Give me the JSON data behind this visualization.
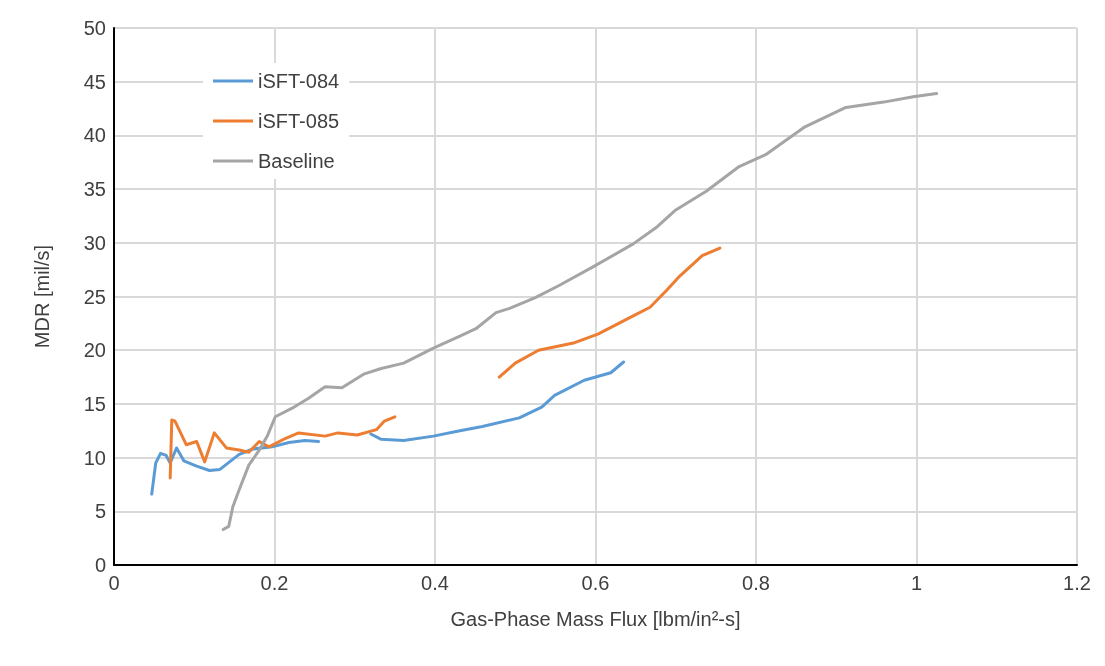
{
  "chart_data": {
    "type": "line",
    "xlabel": "Gas-Phase Mass Flux [lbm/in²-s]",
    "ylabel": "MDR [mil/s]",
    "xlim": [
      0,
      1.2
    ],
    "xticks": [
      0,
      0.2,
      0.4,
      0.6,
      0.8,
      1,
      1.2
    ],
    "ylim": [
      0,
      50
    ],
    "yticks": [
      0,
      5,
      10,
      15,
      20,
      25,
      30,
      35,
      40,
      45,
      50
    ],
    "grid": true,
    "legend": "top left",
    "marker": "none",
    "line_style": "solid",
    "series": [
      {
        "name": "iSFT-084",
        "color": "#5b9bd5",
        "x": [
          0.047,
          0.052,
          0.058,
          0.065,
          0.07,
          0.078,
          0.087,
          0.103,
          0.119,
          0.132,
          0.156,
          0.173,
          0.197,
          0.218,
          0.238,
          0.255,
          0.29,
          0.32,
          0.333,
          0.361,
          0.398,
          0.431,
          0.459,
          0.505,
          0.533,
          0.549,
          0.586,
          0.619,
          0.635
        ],
        "values": [
          6.6,
          9.5,
          10.4,
          10.2,
          9.5,
          10.9,
          9.7,
          9.2,
          8.8,
          8.9,
          10.3,
          10.8,
          11.0,
          11.4,
          11.6,
          11.5,
          null,
          12.2,
          11.7,
          11.6,
          12.0,
          12.5,
          12.9,
          13.7,
          14.7,
          15.8,
          17.2,
          17.9,
          18.9
        ]
      },
      {
        "name": "iSFT-085",
        "color": "#ed7d31",
        "x": [
          0.07,
          0.072,
          0.076,
          0.09,
          0.103,
          0.113,
          0.125,
          0.14,
          0.156,
          0.168,
          0.181,
          0.193,
          0.214,
          0.23,
          0.263,
          0.279,
          0.303,
          0.327,
          0.337,
          0.35,
          0.41,
          0.48,
          0.5,
          0.529,
          0.574,
          0.603,
          0.647,
          0.668,
          0.689,
          0.705,
          0.733,
          0.755
        ],
        "values": [
          8.1,
          13.5,
          13.4,
          11.2,
          11.5,
          9.6,
          12.3,
          10.9,
          10.7,
          10.5,
          11.5,
          11.0,
          11.8,
          12.3,
          12.0,
          12.3,
          12.1,
          12.6,
          13.4,
          13.8,
          null,
          17.5,
          18.8,
          20.0,
          20.7,
          21.5,
          23.2,
          24.0,
          25.6,
          26.9,
          28.8,
          29.5
        ]
      },
      {
        "name": "Baseline",
        "color": "#a5a5a5",
        "x": [
          0.136,
          0.143,
          0.148,
          0.156,
          0.168,
          0.181,
          0.191,
          0.201,
          0.222,
          0.242,
          0.263,
          0.284,
          0.312,
          0.333,
          0.361,
          0.398,
          0.431,
          0.451,
          0.476,
          0.493,
          0.525,
          0.554,
          0.598,
          0.647,
          0.677,
          0.699,
          0.738,
          0.779,
          0.812,
          0.861,
          0.912,
          0.959,
          0.996,
          1.025
        ],
        "values": [
          3.3,
          3.6,
          5.4,
          7.0,
          9.3,
          10.7,
          12.0,
          13.8,
          14.6,
          15.5,
          16.6,
          16.5,
          17.8,
          18.3,
          18.8,
          20.2,
          21.3,
          22.0,
          23.5,
          23.9,
          24.9,
          26.0,
          27.8,
          29.9,
          31.5,
          33.0,
          34.8,
          37.1,
          38.2,
          40.8,
          42.6,
          43.1,
          43.6,
          43.9
        ]
      }
    ]
  }
}
